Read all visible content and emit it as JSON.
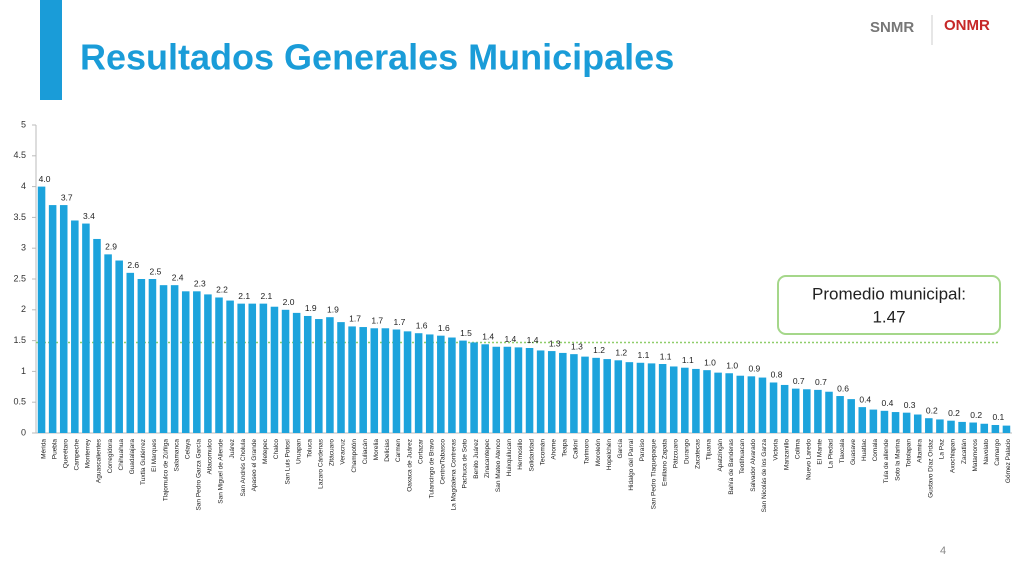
{
  "header": {
    "title": "Resultados Generales Municipales",
    "logo_left": "SNMR",
    "logo_right": "ONMR",
    "page_number": "4"
  },
  "chart_data": {
    "type": "bar",
    "color": "#1ca3dc",
    "categories": [
      "Mérida",
      "Puebla",
      "Querétaro",
      "Campeche",
      "Monterrey",
      "Aguascalientes",
      "Corregidora",
      "Chihuahua",
      "Guadalajara",
      "Tuxtla Gutiérrez",
      "El Marques",
      "Tlajomulco de Zúñiga",
      "Salamanca",
      "Celaya",
      "San Pedro Garza García",
      "Atlacomulco",
      "San Miguel de Allende",
      "Juárez",
      "San Andrés Cholula",
      "Apaseo el Grande",
      "Metepec",
      "Chalco",
      "San Luis Potosí",
      "Uruapan",
      "Toluca",
      "Lazaro Cárdenas",
      "Zitácuaro",
      "Veracruz",
      "Champotón",
      "Culiacán",
      "Morelia",
      "Delicias",
      "Carmen",
      "Oaxaca de Juárez",
      "Cortazar",
      "Tulancingo de Bravo",
      "Centro/Tabasco",
      "La Magdalena Contreras",
      "Pachuca de Soto",
      "Benito Juárez",
      "Zinacantepec",
      "San Mateo Atenco",
      "Huixquilucan",
      "Hermosillo",
      "Solidaridad",
      "Tecomán",
      "Ahome",
      "Teapa",
      "Calkiní",
      "Tarimoro",
      "Moroleón",
      "Hopelchén",
      "García",
      "Hidalgo del Parral",
      "Paraíso",
      "San Pedro Tlaquepaque",
      "Emiliano Zapata",
      "Pátzcuaro",
      "Durango",
      "Zacatecas",
      "Tijuana",
      "Apatzingán",
      "Bahía de Banderas",
      "Teotihuacan",
      "Salvador Alvarado",
      "San Nicolás de los Garza",
      "Victoria",
      "Manzanillo",
      "Colima",
      "Nuevo Laredo",
      "El Mante",
      "La Piedad",
      "Tlaxcala",
      "Guasave",
      "Huatlac",
      "Comala",
      "Tula de allende",
      "Soto la Marina",
      "Totolapan",
      "Altamira",
      "Gustavo Díaz Ordaz",
      "La Paz",
      "Axochiapan",
      "Zacatlán",
      "Matamoros",
      "Navolato",
      "Camargo",
      "Gómez Palacio"
    ],
    "values": [
      4.0,
      3.7,
      3.7,
      3.45,
      3.4,
      3.15,
      2.9,
      2.8,
      2.6,
      2.5,
      2.5,
      2.4,
      2.4,
      2.3,
      2.3,
      2.25,
      2.2,
      2.15,
      2.1,
      2.1,
      2.1,
      2.05,
      2.0,
      1.95,
      1.9,
      1.85,
      1.88,
      1.8,
      1.73,
      1.72,
      1.7,
      1.7,
      1.68,
      1.65,
      1.62,
      1.6,
      1.58,
      1.55,
      1.5,
      1.47,
      1.44,
      1.4,
      1.4,
      1.39,
      1.38,
      1.34,
      1.33,
      1.3,
      1.28,
      1.24,
      1.22,
      1.2,
      1.18,
      1.15,
      1.14,
      1.13,
      1.12,
      1.08,
      1.06,
      1.04,
      1.02,
      0.98,
      0.97,
      0.93,
      0.92,
      0.9,
      0.82,
      0.78,
      0.72,
      0.71,
      0.7,
      0.67,
      0.6,
      0.55,
      0.42,
      0.38,
      0.36,
      0.34,
      0.33,
      0.3,
      0.24,
      0.22,
      0.2,
      0.18,
      0.17,
      0.15,
      0.13,
      0.12
    ],
    "value_labels": [
      "4.0",
      null,
      "3.7",
      null,
      "3.4",
      null,
      "2.9",
      null,
      "2.6",
      null,
      "2.5",
      null,
      "2.4",
      null,
      "2.3",
      null,
      "2.2",
      null,
      "2.1",
      null,
      "2.1",
      null,
      "2.0",
      null,
      "1.9",
      null,
      "1.9",
      null,
      "1.7",
      null,
      "1.7",
      null,
      "1.7",
      null,
      "1.6",
      null,
      "1.6",
      null,
      "1.5",
      null,
      "1.4",
      null,
      "1.4",
      null,
      "1.4",
      null,
      "1.3",
      null,
      "1.3",
      null,
      "1.2",
      null,
      "1.2",
      null,
      "1.1",
      null,
      "1.1",
      null,
      "1.1",
      null,
      "1.0",
      null,
      "1.0",
      null,
      "0.9",
      null,
      "0.8",
      null,
      "0.7",
      null,
      "0.7",
      null,
      "0.6",
      null,
      "0.4",
      null,
      "0.4",
      null,
      "0.3",
      null,
      "0.2",
      null,
      "0.2",
      null,
      "0.2",
      null,
      "0.1",
      null
    ],
    "ylim": [
      0,
      5
    ],
    "yticks": [
      0,
      0.5,
      1,
      1.5,
      2,
      2.5,
      3,
      3.5,
      4,
      4.5,
      5
    ],
    "average": {
      "label": "Promedio municipal:",
      "value": 1.47,
      "color": "#8fce6a"
    }
  }
}
